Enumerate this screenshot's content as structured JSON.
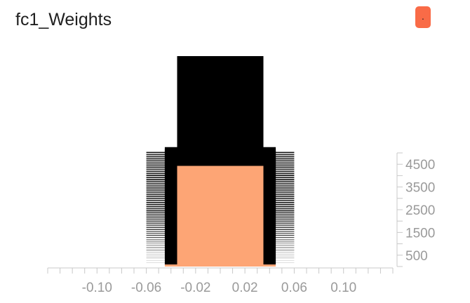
{
  "chart_data": {
    "type": "area",
    "subtype": "histogram-offset",
    "title": "fc1_Weights",
    "legend": {
      "label": ".",
      "placement": "top-right"
    },
    "x_ticks": [
      -0.1,
      -0.06,
      -0.02,
      0.02,
      0.06,
      0.1
    ],
    "x_tick_labels": [
      "-0.10",
      "-0.06",
      "-0.02",
      "0.02",
      "0.06",
      "0.10"
    ],
    "xlim": [
      -0.14,
      0.14
    ],
    "y_ticks": [
      500,
      1500,
      2500,
      3500,
      4500
    ],
    "y_tick_labels": [
      "500",
      "1500",
      "2500",
      "3500",
      "4500"
    ],
    "steps_range": [
      0,
      5000
    ],
    "series": [
      {
        "step": 0,
        "values": [
          0,
          0,
          0.02,
          1.0,
          1.0,
          1.0,
          0.02,
          0,
          0
        ]
      },
      {
        "step": 2500,
        "values": [
          0,
          0.01,
          0.04,
          1.0,
          1.0,
          1.0,
          0.04,
          0.01,
          0
        ]
      },
      {
        "step": 5000,
        "values": [
          0,
          0.01,
          0.06,
          1.0,
          1.0,
          1.0,
          0.06,
          0.01,
          0
        ]
      }
    ],
    "bin_edges": [
      -0.14,
      -0.06,
      -0.045,
      -0.035,
      -0.01,
      0.01,
      0.035,
      0.045,
      0.06,
      0.14
    ],
    "colors": {
      "front": "#fda575",
      "back": "#e04a1e",
      "grid": "#e4e4e4",
      "axis": "#c8c8c8",
      "legend": "#f96b47"
    }
  }
}
